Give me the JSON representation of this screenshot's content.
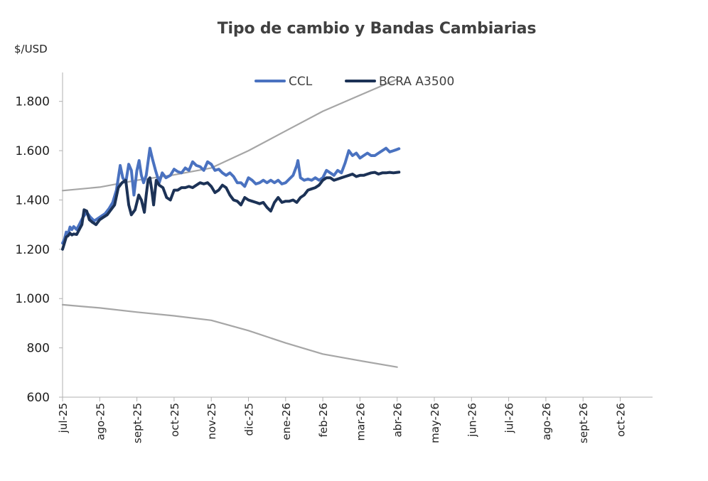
{
  "chart_data": {
    "type": "line",
    "title": "Tipo de cambio y Bandas Cambiarias",
    "ylabel": "$/USD",
    "xlabel": "",
    "ylim": [
      600,
      1900
    ],
    "yticks": [
      600,
      800,
      1000,
      1200,
      1400,
      1600,
      1800
    ],
    "ytick_labels": [
      "600",
      "800",
      "1.000",
      "1.200",
      "1.400",
      "1.600",
      "1.800"
    ],
    "x_month_labels": [
      "jul-25",
      "ago-25",
      "sept-25",
      "oct-25",
      "nov-25",
      "dic-25",
      "ene-26",
      "feb-26",
      "mar-26",
      "abr-26",
      "may-26",
      "jun-26",
      "jul-26",
      "ago-26",
      "sept-26",
      "oct-26"
    ],
    "legend_position": "top-center",
    "grid": false,
    "series": [
      {
        "name": "CCL",
        "color": "#4a72c0",
        "points": [
          [
            0,
            1225
          ],
          [
            0.05,
            1240
          ],
          [
            0.1,
            1270
          ],
          [
            0.15,
            1262
          ],
          [
            0.2,
            1290
          ],
          [
            0.25,
            1280
          ],
          [
            0.3,
            1292
          ],
          [
            0.38,
            1280
          ],
          [
            0.45,
            1300
          ],
          [
            0.55,
            1330
          ],
          [
            0.65,
            1350
          ],
          [
            0.75,
            1330
          ],
          [
            0.85,
            1315
          ],
          [
            0.95,
            1325
          ],
          [
            1.05,
            1335
          ],
          [
            1.15,
            1345
          ],
          [
            1.25,
            1365
          ],
          [
            1.35,
            1390
          ],
          [
            1.45,
            1440
          ],
          [
            1.55,
            1540
          ],
          [
            1.62,
            1490
          ],
          [
            1.7,
            1470
          ],
          [
            1.78,
            1545
          ],
          [
            1.85,
            1520
          ],
          [
            1.92,
            1420
          ],
          [
            2.0,
            1520
          ],
          [
            2.06,
            1560
          ],
          [
            2.12,
            1500
          ],
          [
            2.18,
            1470
          ],
          [
            2.25,
            1500
          ],
          [
            2.35,
            1610
          ],
          [
            2.42,
            1565
          ],
          [
            2.5,
            1520
          ],
          [
            2.6,
            1470
          ],
          [
            2.68,
            1510
          ],
          [
            2.78,
            1490
          ],
          [
            2.9,
            1500
          ],
          [
            3.0,
            1525
          ],
          [
            3.1,
            1515
          ],
          [
            3.2,
            1510
          ],
          [
            3.3,
            1530
          ],
          [
            3.4,
            1520
          ],
          [
            3.5,
            1555
          ],
          [
            3.6,
            1540
          ],
          [
            3.7,
            1535
          ],
          [
            3.8,
            1520
          ],
          [
            3.9,
            1555
          ],
          [
            4.0,
            1545
          ],
          [
            4.1,
            1520
          ],
          [
            4.2,
            1525
          ],
          [
            4.3,
            1510
          ],
          [
            4.4,
            1500
          ],
          [
            4.5,
            1510
          ],
          [
            4.6,
            1495
          ],
          [
            4.7,
            1470
          ],
          [
            4.8,
            1470
          ],
          [
            4.9,
            1455
          ],
          [
            5.0,
            1490
          ],
          [
            5.1,
            1480
          ],
          [
            5.2,
            1465
          ],
          [
            5.3,
            1470
          ],
          [
            5.4,
            1480
          ],
          [
            5.5,
            1470
          ],
          [
            5.6,
            1480
          ],
          [
            5.7,
            1470
          ],
          [
            5.8,
            1480
          ],
          [
            5.9,
            1465
          ],
          [
            6.0,
            1470
          ],
          [
            6.1,
            1485
          ],
          [
            6.2,
            1500
          ],
          [
            6.3,
            1540
          ],
          [
            6.33,
            1560
          ],
          [
            6.4,
            1490
          ],
          [
            6.5,
            1480
          ],
          [
            6.6,
            1485
          ],
          [
            6.7,
            1480
          ],
          [
            6.8,
            1490
          ],
          [
            6.9,
            1480
          ],
          [
            7.0,
            1490
          ],
          [
            7.1,
            1520
          ],
          [
            7.2,
            1510
          ],
          [
            7.3,
            1500
          ],
          [
            7.4,
            1520
          ],
          [
            7.5,
            1510
          ],
          [
            7.6,
            1550
          ],
          [
            7.7,
            1600
          ],
          [
            7.8,
            1580
          ],
          [
            7.9,
            1590
          ],
          [
            8.0,
            1570
          ],
          [
            8.1,
            1580
          ],
          [
            8.2,
            1590
          ],
          [
            8.3,
            1580
          ],
          [
            8.4,
            1580
          ],
          [
            8.5,
            1590
          ],
          [
            8.6,
            1600
          ],
          [
            8.7,
            1610
          ],
          [
            8.8,
            1595
          ],
          [
            8.9,
            1600
          ],
          [
            9.0,
            1605
          ],
          [
            9.05,
            1608
          ]
        ]
      },
      {
        "name": "BCRA A3500",
        "color": "#1c3256",
        "points": [
          [
            0,
            1200
          ],
          [
            0.05,
            1225
          ],
          [
            0.1,
            1250
          ],
          [
            0.15,
            1255
          ],
          [
            0.2,
            1265
          ],
          [
            0.25,
            1258
          ],
          [
            0.3,
            1262
          ],
          [
            0.38,
            1260
          ],
          [
            0.45,
            1280
          ],
          [
            0.52,
            1300
          ],
          [
            0.58,
            1360
          ],
          [
            0.65,
            1355
          ],
          [
            0.72,
            1320
          ],
          [
            0.8,
            1310
          ],
          [
            0.9,
            1300
          ],
          [
            1.0,
            1320
          ],
          [
            1.1,
            1330
          ],
          [
            1.2,
            1340
          ],
          [
            1.3,
            1360
          ],
          [
            1.4,
            1380
          ],
          [
            1.5,
            1450
          ],
          [
            1.6,
            1470
          ],
          [
            1.7,
            1480
          ],
          [
            1.78,
            1380
          ],
          [
            1.85,
            1340
          ],
          [
            1.95,
            1360
          ],
          [
            2.05,
            1420
          ],
          [
            2.12,
            1400
          ],
          [
            2.2,
            1350
          ],
          [
            2.25,
            1420
          ],
          [
            2.3,
            1480
          ],
          [
            2.35,
            1490
          ],
          [
            2.4,
            1440
          ],
          [
            2.45,
            1380
          ],
          [
            2.52,
            1480
          ],
          [
            2.6,
            1460
          ],
          [
            2.7,
            1450
          ],
          [
            2.8,
            1410
          ],
          [
            2.9,
            1400
          ],
          [
            3.0,
            1440
          ],
          [
            3.1,
            1440
          ],
          [
            3.2,
            1450
          ],
          [
            3.3,
            1450
          ],
          [
            3.4,
            1455
          ],
          [
            3.5,
            1450
          ],
          [
            3.6,
            1460
          ],
          [
            3.7,
            1470
          ],
          [
            3.8,
            1465
          ],
          [
            3.9,
            1470
          ],
          [
            4.0,
            1455
          ],
          [
            4.1,
            1430
          ],
          [
            4.2,
            1440
          ],
          [
            4.3,
            1460
          ],
          [
            4.4,
            1450
          ],
          [
            4.5,
            1420
          ],
          [
            4.6,
            1400
          ],
          [
            4.7,
            1395
          ],
          [
            4.8,
            1380
          ],
          [
            4.9,
            1410
          ],
          [
            5.0,
            1400
          ],
          [
            5.1,
            1395
          ],
          [
            5.2,
            1390
          ],
          [
            5.3,
            1385
          ],
          [
            5.4,
            1390
          ],
          [
            5.5,
            1370
          ],
          [
            5.6,
            1355
          ],
          [
            5.7,
            1390
          ],
          [
            5.8,
            1410
          ],
          [
            5.9,
            1390
          ],
          [
            6.0,
            1395
          ],
          [
            6.1,
            1395
          ],
          [
            6.2,
            1400
          ],
          [
            6.3,
            1390
          ],
          [
            6.4,
            1410
          ],
          [
            6.5,
            1420
          ],
          [
            6.6,
            1440
          ],
          [
            6.7,
            1445
          ],
          [
            6.8,
            1450
          ],
          [
            6.9,
            1460
          ],
          [
            7.0,
            1480
          ],
          [
            7.1,
            1490
          ],
          [
            7.2,
            1490
          ],
          [
            7.3,
            1480
          ],
          [
            7.4,
            1485
          ],
          [
            7.5,
            1490
          ],
          [
            7.6,
            1495
          ],
          [
            7.7,
            1500
          ],
          [
            7.8,
            1505
          ],
          [
            7.9,
            1495
          ],
          [
            8.0,
            1500
          ],
          [
            8.1,
            1500
          ],
          [
            8.2,
            1505
          ],
          [
            8.3,
            1510
          ],
          [
            8.4,
            1512
          ],
          [
            8.5,
            1505
          ],
          [
            8.6,
            1510
          ],
          [
            8.7,
            1510
          ],
          [
            8.8,
            1512
          ],
          [
            8.9,
            1510
          ],
          [
            9.0,
            1512
          ],
          [
            9.05,
            1513
          ]
        ]
      },
      {
        "name": "",
        "color": "#a6a6a6",
        "points": [
          [
            0,
            1438
          ],
          [
            1,
            1452
          ],
          [
            2,
            1480
          ],
          [
            3,
            1502
          ],
          [
            4,
            1530
          ],
          [
            5,
            1600
          ],
          [
            6,
            1680
          ],
          [
            7,
            1760
          ],
          [
            8,
            1825
          ],
          [
            9,
            1890
          ]
        ]
      },
      {
        "name": "",
        "color": "#a6a6a6",
        "points": [
          [
            0,
            975
          ],
          [
            1,
            962
          ],
          [
            2,
            945
          ],
          [
            3,
            930
          ],
          [
            4,
            912
          ],
          [
            5,
            870
          ],
          [
            6,
            820
          ],
          [
            7,
            775
          ],
          [
            8,
            748
          ],
          [
            9,
            722
          ]
        ]
      }
    ]
  }
}
